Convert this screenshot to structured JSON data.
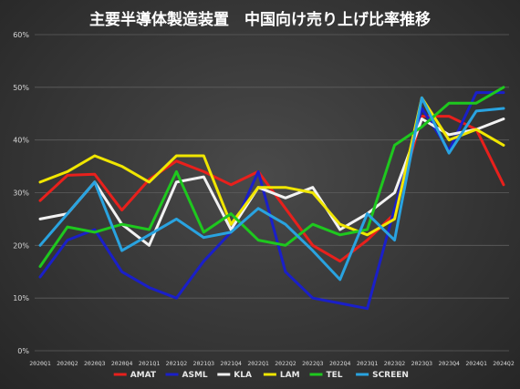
{
  "chart_data": {
    "type": "line",
    "title": "主要半導体製造装置　中国向け売り上げ比率推移",
    "xlabel": "",
    "ylabel": "",
    "ylim": [
      0,
      60
    ],
    "yticks": [
      0,
      10,
      20,
      30,
      40,
      50,
      60
    ],
    "ytick_labels": [
      "0%",
      "10%",
      "20%",
      "30%",
      "40%",
      "50%",
      "60%"
    ],
    "grid": true,
    "legend_position": "bottom",
    "categories": [
      "2020Q1",
      "2020Q2",
      "2020Q3",
      "2020Q4",
      "2021Q1",
      "2021Q2",
      "2021Q3",
      "2021Q4",
      "2022Q1",
      "2022Q2",
      "2022Q3",
      "2022Q4",
      "2023Q1",
      "2023Q2",
      "2023Q3",
      "2023Q4",
      "2024Q1",
      "2024Q2"
    ],
    "series": [
      {
        "name": "AMAT",
        "color": "#e8201c",
        "values": [
          28.5,
          33.3,
          33.5,
          26.7,
          32.5,
          36,
          34,
          31.5,
          34,
          27,
          20,
          17,
          21,
          26,
          44.5,
          44.5,
          42,
          31.5
        ]
      },
      {
        "name": "ASML",
        "color": "#1a1fc8",
        "values": [
          14,
          21,
          23,
          15,
          12,
          10,
          17,
          22.5,
          34,
          15,
          10,
          9,
          8,
          27,
          46,
          38,
          49,
          49
        ]
      },
      {
        "name": "KLA",
        "color": "#f2f2f2",
        "values": [
          25,
          26,
          32,
          24,
          20,
          32,
          33,
          23,
          31,
          29,
          31,
          23,
          26,
          30,
          44,
          41,
          42,
          44
        ]
      },
      {
        "name": "LAM",
        "color": "#f0e600",
        "values": [
          32,
          34,
          37,
          35,
          32,
          37,
          37,
          24,
          31,
          31,
          30,
          24,
          22,
          25,
          48,
          40,
          42,
          39
        ]
      },
      {
        "name": "TEL",
        "color": "#1ec81e",
        "values": [
          16,
          23.5,
          22.5,
          24,
          23,
          34,
          22.5,
          26,
          21,
          20,
          24,
          22,
          23,
          39,
          42.5,
          47,
          47,
          50
        ]
      },
      {
        "name": "SCREEN",
        "color": "#29a3e0",
        "values": [
          20,
          26,
          32,
          19,
          22,
          25,
          21.5,
          22.5,
          27,
          24,
          19,
          13.5,
          26,
          21,
          48,
          37.5,
          45.5,
          46
        ]
      }
    ]
  }
}
